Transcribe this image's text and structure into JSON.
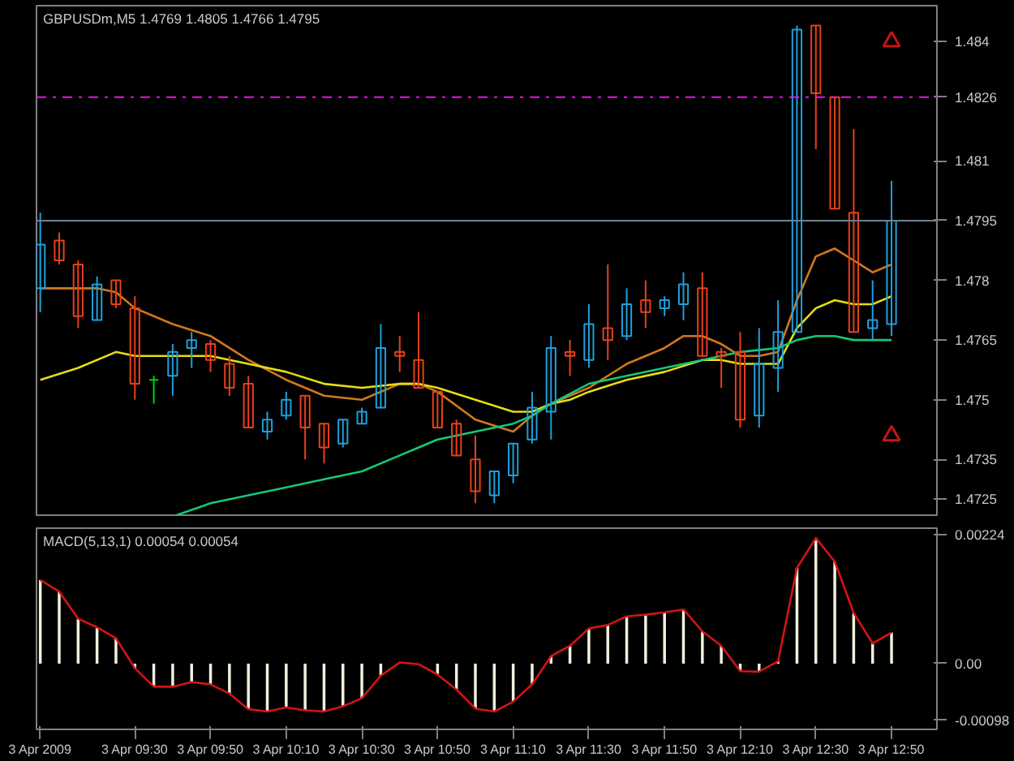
{
  "chart_data": [
    {
      "type": "candlestick",
      "title": "GBPUSDm,M5  1.4769 1.4805 1.4766 1.4795",
      "x": [
        "2009-04-03T09:05",
        "2009-04-03T09:10",
        "2009-04-03T09:15",
        "2009-04-03T09:20",
        "2009-04-03T09:25",
        "2009-04-03T09:30",
        "2009-04-03T09:35",
        "2009-04-03T09:40",
        "2009-04-03T09:45",
        "2009-04-03T09:50",
        "2009-04-03T09:55",
        "2009-04-03T10:00",
        "2009-04-03T10:05",
        "2009-04-03T10:10",
        "2009-04-03T10:15",
        "2009-04-03T10:20",
        "2009-04-03T10:25",
        "2009-04-03T10:30",
        "2009-04-03T10:35",
        "2009-04-03T10:40",
        "2009-04-03T10:45",
        "2009-04-03T10:50",
        "2009-04-03T10:55",
        "2009-04-03T11:00",
        "2009-04-03T11:05",
        "2009-04-03T11:10",
        "2009-04-03T11:15",
        "2009-04-03T11:20",
        "2009-04-03T11:25",
        "2009-04-03T11:30",
        "2009-04-03T11:35",
        "2009-04-03T11:40",
        "2009-04-03T11:45",
        "2009-04-03T11:50",
        "2009-04-03T11:55",
        "2009-04-03T12:00",
        "2009-04-03T12:05",
        "2009-04-03T12:10",
        "2009-04-03T12:15",
        "2009-04-03T12:20",
        "2009-04-03T12:25",
        "2009-04-03T12:30",
        "2009-04-03T12:35",
        "2009-04-03T12:40",
        "2009-04-03T12:45",
        "2009-04-03T12:50"
      ],
      "ohlc": [
        [
          1.4778,
          1.4797,
          1.4772,
          1.4789
        ],
        [
          1.479,
          1.4792,
          1.4784,
          1.4785
        ],
        [
          1.4784,
          1.4785,
          1.4768,
          1.4771
        ],
        [
          1.477,
          1.4781,
          1.477,
          1.4779
        ],
        [
          1.478,
          1.478,
          1.4773,
          1.4774
        ],
        [
          1.4773,
          1.4776,
          1.475,
          1.4754
        ],
        [
          1.4755,
          1.4756,
          1.4749,
          1.4755
        ],
        [
          1.4756,
          1.4764,
          1.4751,
          1.4762
        ],
        [
          1.4763,
          1.4767,
          1.4758,
          1.4765
        ],
        [
          1.4764,
          1.4765,
          1.4757,
          1.476
        ],
        [
          1.4759,
          1.4761,
          1.4751,
          1.4753
        ],
        [
          1.4754,
          1.4756,
          1.4743,
          1.4743
        ],
        [
          1.4742,
          1.4747,
          1.474,
          1.4745
        ],
        [
          1.4746,
          1.4752,
          1.4745,
          1.475
        ],
        [
          1.4751,
          1.4751,
          1.4735,
          1.4743
        ],
        [
          1.4744,
          1.4744,
          1.4734,
          1.4738
        ],
        [
          1.4739,
          1.4745,
          1.4738,
          1.4745
        ],
        [
          1.4744,
          1.4748,
          1.4744,
          1.4747
        ],
        [
          1.4748,
          1.4769,
          1.4748,
          1.4763
        ],
        [
          1.4762,
          1.4766,
          1.4757,
          1.4761
        ],
        [
          1.476,
          1.4772,
          1.4753,
          1.4753
        ],
        [
          1.4752,
          1.4752,
          1.4743,
          1.4743
        ],
        [
          1.4744,
          1.4745,
          1.4736,
          1.4736
        ],
        [
          1.4735,
          1.4741,
          1.4724,
          1.4727
        ],
        [
          1.4726,
          1.4732,
          1.4724,
          1.4732
        ],
        [
          1.4731,
          1.4739,
          1.4729,
          1.4739
        ],
        [
          1.474,
          1.4752,
          1.4739,
          1.4748
        ],
        [
          1.4747,
          1.4766,
          1.474,
          1.4763
        ],
        [
          1.4762,
          1.4765,
          1.4756,
          1.4761
        ],
        [
          1.476,
          1.4774,
          1.4758,
          1.4769
        ],
        [
          1.4768,
          1.4784,
          1.476,
          1.4765
        ],
        [
          1.4766,
          1.4778,
          1.4765,
          1.4774
        ],
        [
          1.4775,
          1.478,
          1.4768,
          1.4772
        ],
        [
          1.4773,
          1.4776,
          1.4771,
          1.4775
        ],
        [
          1.4774,
          1.4782,
          1.477,
          1.4779
        ],
        [
          1.4778,
          1.4782,
          1.4761,
          1.4761
        ],
        [
          1.4762,
          1.4763,
          1.4753,
          1.4761
        ],
        [
          1.4762,
          1.4767,
          1.4743,
          1.4745
        ],
        [
          1.4746,
          1.4768,
          1.4743,
          1.4759
        ],
        [
          1.4758,
          1.4775,
          1.4752,
          1.4767
        ],
        [
          1.4767,
          1.4844,
          1.4767,
          1.4843
        ],
        [
          1.4844,
          1.4844,
          1.4813,
          1.4827
        ],
        [
          1.4826,
          1.4826,
          1.4798,
          1.4798
        ],
        [
          1.4797,
          1.4818,
          1.4767,
          1.4767
        ],
        [
          1.4768,
          1.478,
          1.4765,
          1.477
        ],
        [
          1.4769,
          1.4805,
          1.4766,
          1.4795
        ]
      ],
      "colors": [
        "#1ea0dc",
        "#e8401c",
        "#e8401c",
        "#1ea0dc",
        "#e8401c",
        "#e8401c",
        "#00d000",
        "#1ea0dc",
        "#1ea0dc",
        "#e8401c",
        "#e8401c",
        "#e8401c",
        "#1ea0dc",
        "#1ea0dc",
        "#e8401c",
        "#e8401c",
        "#1ea0dc",
        "#1ea0dc",
        "#1ea0dc",
        "#e8401c",
        "#e8401c",
        "#e8401c",
        "#e8401c",
        "#e8401c",
        "#1ea0dc",
        "#1ea0dc",
        "#1ea0dc",
        "#1ea0dc",
        "#e8401c",
        "#1ea0dc",
        "#e8401c",
        "#1ea0dc",
        "#e8401c",
        "#1ea0dc",
        "#1ea0dc",
        "#e8401c",
        "#e8401c",
        "#e8401c",
        "#1ea0dc",
        "#1ea0dc",
        "#1ea0dc",
        "#e8401c",
        "#e8401c",
        "#e8401c",
        "#1ea0dc",
        "#1ea0dc"
      ],
      "series": [
        {
          "type": "line",
          "color": "#d2781e",
          "x": [
            "2009-04-03T09:05",
            "2009-04-03T09:20",
            "2009-04-03T09:25",
            "2009-04-03T09:30",
            "2009-04-03T09:40",
            "2009-04-03T09:50",
            "2009-04-03T10:00",
            "2009-04-03T10:10",
            "2009-04-03T10:20",
            "2009-04-03T10:30",
            "2009-04-03T10:40",
            "2009-04-03T10:45",
            "2009-04-03T10:50",
            "2009-04-03T11:00",
            "2009-04-03T11:10",
            "2009-04-03T11:15",
            "2009-04-03T11:20",
            "2009-04-03T11:25",
            "2009-04-03T11:30",
            "2009-04-03T11:40",
            "2009-04-03T11:50",
            "2009-04-03T11:55",
            "2009-04-03T12:00",
            "2009-04-03T12:05",
            "2009-04-03T12:10",
            "2009-04-03T12:15",
            "2009-04-03T12:20",
            "2009-04-03T12:25",
            "2009-04-03T12:30",
            "2009-04-03T12:35",
            "2009-04-03T12:40",
            "2009-04-03T12:45",
            "2009-04-03T12:50"
          ],
          "values": [
            1.4778,
            1.4778,
            1.4777,
            1.4773,
            1.4769,
            1.4766,
            1.476,
            1.4755,
            1.4751,
            1.475,
            1.4754,
            1.4754,
            1.4752,
            1.4745,
            1.4742,
            1.4746,
            1.4749,
            1.4751,
            1.4753,
            1.4759,
            1.4763,
            1.4766,
            1.4766,
            1.4764,
            1.4761,
            1.4761,
            1.4762,
            1.4775,
            1.4786,
            1.4788,
            1.4785,
            1.4782,
            1.4784
          ]
        },
        {
          "type": "line",
          "color": "#e6dc14",
          "x": [
            "2009-04-03T09:05",
            "2009-04-03T09:15",
            "2009-04-03T09:25",
            "2009-04-03T09:30",
            "2009-04-03T09:40",
            "2009-04-03T09:50",
            "2009-04-03T10:00",
            "2009-04-03T10:10",
            "2009-04-03T10:20",
            "2009-04-03T10:30",
            "2009-04-03T10:40",
            "2009-04-03T10:45",
            "2009-04-03T10:50",
            "2009-04-03T11:00",
            "2009-04-03T11:10",
            "2009-04-03T11:15",
            "2009-04-03T11:20",
            "2009-04-03T11:25",
            "2009-04-03T11:30",
            "2009-04-03T11:40",
            "2009-04-03T11:50",
            "2009-04-03T12:00",
            "2009-04-03T12:05",
            "2009-04-03T12:10",
            "2009-04-03T12:15",
            "2009-04-03T12:20",
            "2009-04-03T12:25",
            "2009-04-03T12:30",
            "2009-04-03T12:35",
            "2009-04-03T12:40",
            "2009-04-03T12:45",
            "2009-04-03T12:50"
          ],
          "values": [
            1.4755,
            1.4758,
            1.4762,
            1.4761,
            1.4761,
            1.4761,
            1.4759,
            1.4757,
            1.4754,
            1.4753,
            1.4754,
            1.4754,
            1.4753,
            1.475,
            1.4747,
            1.4747,
            1.4749,
            1.475,
            1.4752,
            1.4755,
            1.4757,
            1.476,
            1.476,
            1.4759,
            1.4759,
            1.4759,
            1.4768,
            1.4773,
            1.4775,
            1.4774,
            1.4774,
            1.4776
          ]
        },
        {
          "type": "line",
          "color": "#14c878",
          "x": [
            "2009-04-03T09:41",
            "2009-04-03T09:50",
            "2009-04-03T10:00",
            "2009-04-03T10:10",
            "2009-04-03T10:20",
            "2009-04-03T10:30",
            "2009-04-03T10:40",
            "2009-04-03T10:50",
            "2009-04-03T11:00",
            "2009-04-03T11:10",
            "2009-04-03T11:15",
            "2009-04-03T11:20",
            "2009-04-03T11:30",
            "2009-04-03T11:40",
            "2009-04-03T11:50",
            "2009-04-03T12:00",
            "2009-04-03T12:10",
            "2009-04-03T12:20",
            "2009-04-03T12:25",
            "2009-04-03T12:30",
            "2009-04-03T12:35",
            "2009-04-03T12:40",
            "2009-04-03T12:45",
            "2009-04-03T12:50"
          ],
          "values": [
            1.4721,
            1.4724,
            1.4726,
            1.4728,
            1.473,
            1.4732,
            1.4736,
            1.474,
            1.4742,
            1.4744,
            1.4746,
            1.4749,
            1.4754,
            1.4756,
            1.4758,
            1.476,
            1.4762,
            1.4763,
            1.4765,
            1.4766,
            1.4766,
            1.4765,
            1.4765,
            1.4765
          ]
        },
        {
          "type": "scatter",
          "color": "#c81414",
          "marker": "triangle",
          "x": [
            "2009-04-03T12:50",
            "2009-04-03T12:50"
          ],
          "values": [
            1.484,
            1.4741
          ]
        }
      ],
      "xlim": [
        "2009-04-03T09:04",
        "2009-04-03T13:02"
      ],
      "ylim": [
        1.4721,
        1.4849
      ],
      "yticks": [
        1.484,
        1.481,
        1.478,
        1.4765,
        1.475,
        1.4735,
        1.4725
      ],
      "ref_lines": [
        {
          "axis": "y",
          "value": 1.4826,
          "label": "1.4826",
          "color": "#e614e6",
          "line_style": "dashdot"
        },
        {
          "axis": "y",
          "value": 1.4795,
          "label": "1.4795",
          "color": "#708090",
          "line_style": "solid"
        }
      ],
      "tick_labels": "y"
    },
    {
      "type": "bar",
      "title": "MACD(5,13,1) 0.00054 0.00054",
      "x": [
        "2009-04-03T09:05",
        "2009-04-03T09:10",
        "2009-04-03T09:15",
        "2009-04-03T09:20",
        "2009-04-03T09:25",
        "2009-04-03T09:30",
        "2009-04-03T09:35",
        "2009-04-03T09:40",
        "2009-04-03T09:45",
        "2009-04-03T09:50",
        "2009-04-03T09:55",
        "2009-04-03T10:00",
        "2009-04-03T10:05",
        "2009-04-03T10:10",
        "2009-04-03T10:15",
        "2009-04-03T10:20",
        "2009-04-03T10:25",
        "2009-04-03T10:30",
        "2009-04-03T10:35",
        "2009-04-03T10:40",
        "2009-04-03T10:45",
        "2009-04-03T10:50",
        "2009-04-03T10:55",
        "2009-04-03T11:00",
        "2009-04-03T11:05",
        "2009-04-03T11:10",
        "2009-04-03T11:15",
        "2009-04-03T11:20",
        "2009-04-03T11:25",
        "2009-04-03T11:30",
        "2009-04-03T11:35",
        "2009-04-03T11:40",
        "2009-04-03T11:45",
        "2009-04-03T11:50",
        "2009-04-03T11:55",
        "2009-04-03T12:00",
        "2009-04-03T12:05",
        "2009-04-03T12:10",
        "2009-04-03T12:15",
        "2009-04-03T12:20",
        "2009-04-03T12:25",
        "2009-04-03T12:30",
        "2009-04-03T12:35",
        "2009-04-03T12:40",
        "2009-04-03T12:45",
        "2009-04-03T12:50"
      ],
      "series": [
        {
          "type": "bar",
          "color": "#f0f0dc",
          "values": [
            0.00145,
            0.00125,
            0.00078,
            0.00063,
            0.00044,
            -8e-05,
            -0.0004,
            -0.0004,
            -0.00032,
            -0.00036,
            -0.00052,
            -0.00079,
            -0.00083,
            -0.00076,
            -0.00081,
            -0.00083,
            -0.00074,
            -0.0006,
            -0.00021,
            null,
            null,
            -0.00019,
            -0.00045,
            -0.00078,
            -0.00083,
            -0.00066,
            -0.00036,
            0.00013,
            0.00031,
            0.00061,
            0.00067,
            0.00082,
            0.00085,
            0.00089,
            0.00094,
            0.00056,
            0.00031,
            -0.00013,
            -0.00014,
            4e-05,
            0.00166,
            0.00218,
            0.00177,
            0.00088,
            0.00035,
            0.00054
          ]
        },
        {
          "type": "line",
          "color": "#d21414",
          "values": [
            0.00145,
            0.00125,
            0.00078,
            0.00063,
            0.00044,
            -8e-05,
            -0.0004,
            -0.0004,
            -0.00032,
            -0.00036,
            -0.00052,
            -0.00079,
            -0.00083,
            -0.00076,
            -0.00081,
            -0.00083,
            -0.00074,
            -0.0006,
            -0.00021,
            2e-05,
            -1e-05,
            -0.00019,
            -0.00045,
            -0.00078,
            -0.00083,
            -0.00066,
            -0.00036,
            0.00013,
            0.00031,
            0.00061,
            0.00067,
            0.00082,
            0.00085,
            0.00089,
            0.00094,
            0.00056,
            0.00031,
            -0.00013,
            -0.00014,
            4e-05,
            0.00166,
            0.00218,
            0.00177,
            0.00088,
            0.00035,
            0.00054
          ]
        }
      ],
      "xlim": [
        "2009-04-03T09:04",
        "2009-04-03T13:02"
      ],
      "xticks": [
        {
          "value": "2009-04-03T09:05",
          "label": "3 Apr 2009"
        },
        {
          "value": "2009-04-03T09:30",
          "label": "3 Apr 09:30"
        },
        {
          "value": "2009-04-03T09:50",
          "label": "3 Apr 09:50"
        },
        {
          "value": "2009-04-03T10:10",
          "label": "3 Apr 10:10"
        },
        {
          "value": "2009-04-03T10:30",
          "label": "3 Apr 10:30"
        },
        {
          "value": "2009-04-03T10:50",
          "label": "3 Apr 10:50"
        },
        {
          "value": "2009-04-03T11:10",
          "label": "3 Apr 11:10"
        },
        {
          "value": "2009-04-03T11:30",
          "label": "3 Apr 11:30"
        },
        {
          "value": "2009-04-03T11:50",
          "label": "3 Apr 11:50"
        },
        {
          "value": "2009-04-03T12:10",
          "label": "3 Apr 12:10"
        },
        {
          "value": "2009-04-03T12:30",
          "label": "3 Apr 12:30"
        },
        {
          "value": "2009-04-03T12:50",
          "label": "3 Apr 12:50"
        }
      ],
      "ylim": [
        -0.00114,
        0.00235
      ],
      "yticks": [
        0.00224,
        {
          "value": 0,
          "label": "0.00"
        },
        -0.00098
      ]
    }
  ]
}
